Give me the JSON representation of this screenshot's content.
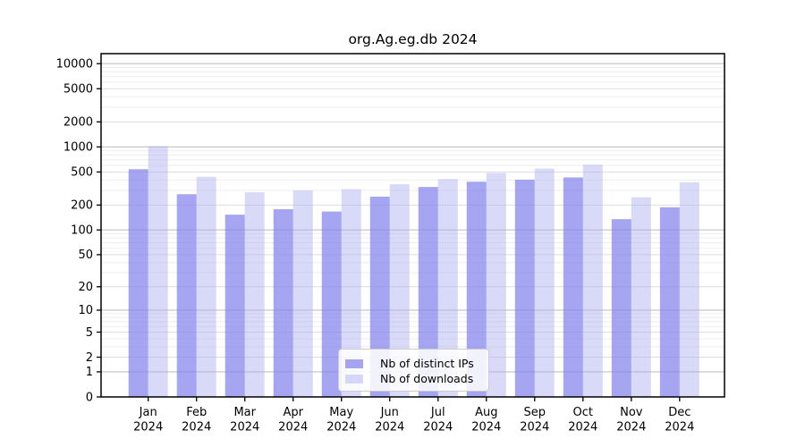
{
  "chart_data": {
    "type": "bar",
    "title": "org.Ag.eg.db 2024",
    "year_label": "2024",
    "categories": [
      "Jan",
      "Feb",
      "Mar",
      "Apr",
      "May",
      "Jun",
      "Jul",
      "Aug",
      "Sep",
      "Oct",
      "Nov",
      "Dec"
    ],
    "series": [
      {
        "name": "Nb of distinct IPs",
        "color": "#8282eb",
        "opacity": 0.72,
        "values": [
          540,
          270,
          153,
          178,
          167,
          252,
          330,
          382,
          404,
          430,
          135,
          188
        ]
      },
      {
        "name": "Nb of downloads",
        "color": "#aaaaf0",
        "opacity": 0.45,
        "values": [
          1020,
          438,
          285,
          300,
          310,
          356,
          411,
          487,
          549,
          613,
          248,
          375
        ]
      }
    ],
    "y_axis": {
      "scale": "log10(1+v)",
      "ticks": [
        10000,
        5000,
        2000,
        1000,
        500,
        200,
        100,
        50,
        20,
        10,
        5,
        2,
        1,
        0
      ],
      "range": [
        0,
        10000
      ],
      "grid": true
    },
    "x_axis": {
      "tick_label_line2": "2024"
    },
    "legend_position": "bottom-center"
  }
}
